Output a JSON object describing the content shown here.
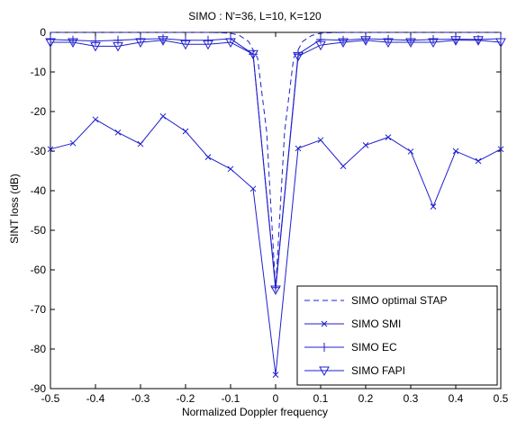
{
  "chart_data": {
    "type": "line",
    "title": "SIMO : N'=36, L=10, K=120",
    "xlabel": "Normalized Doppler frequency",
    "ylabel": "SINT loss (dB)",
    "xlim": [
      -0.5,
      0.5
    ],
    "ylim": [
      -90,
      0
    ],
    "xticks": [
      -0.5,
      -0.4,
      -0.3,
      -0.2,
      -0.1,
      0,
      0.1,
      0.2,
      0.3,
      0.4,
      0.5
    ],
    "xtick_labels": [
      "-0.5",
      "-0.4",
      "-0.3",
      "-0.2",
      "-0.1",
      "0",
      "0.1",
      "0.2",
      "0.3",
      "0.4",
      "0.5"
    ],
    "yticks": [
      0,
      -10,
      -20,
      -30,
      -40,
      -50,
      -60,
      -70,
      -80,
      -90
    ],
    "ytick_labels": [
      "0",
      "-10",
      "-20",
      "-30",
      "-40",
      "-50",
      "-60",
      "-70",
      "-80",
      "-90"
    ],
    "grid": false,
    "legend_position": "bottom-right",
    "color": "#1f1fcc",
    "series": [
      {
        "name": "SIMO optimal STAP",
        "style": "dashed",
        "marker": "none",
        "x": [
          -0.5,
          -0.15,
          -0.1,
          -0.08,
          -0.06,
          -0.04,
          -0.02,
          0,
          0.02,
          0.04,
          0.06,
          0.08,
          0.1,
          0.15,
          0.5
        ],
        "y": [
          0,
          0,
          -0.2,
          -0.8,
          -2.3,
          -6.5,
          -25,
          -65,
          -25,
          -6.5,
          -2.3,
          -0.8,
          -0.2,
          0,
          0
        ]
      },
      {
        "name": "SIMO SMI",
        "style": "solid",
        "marker": "x",
        "x": [
          -0.5,
          -0.45,
          -0.4,
          -0.35,
          -0.3,
          -0.25,
          -0.2,
          -0.15,
          -0.1,
          -0.05,
          0,
          0.05,
          0.1,
          0.15,
          0.2,
          0.25,
          0.3,
          0.35,
          0.4,
          0.45,
          0.5
        ],
        "y": [
          -29.5,
          -28,
          -22,
          -25.3,
          -28.2,
          -21.2,
          -25,
          -31.5,
          -34.5,
          -39.5,
          -86.5,
          -29.3,
          -27.2,
          -33.8,
          -28.5,
          -26.5,
          -30.1,
          -44,
          -30,
          -32.5,
          -29.5
        ]
      },
      {
        "name": "SIMO EC",
        "style": "solid",
        "marker": "+",
        "x": [
          -0.5,
          -0.45,
          -0.4,
          -0.35,
          -0.3,
          -0.25,
          -0.2,
          -0.15,
          -0.1,
          -0.05,
          0,
          0.05,
          0.1,
          0.15,
          0.2,
          0.25,
          0.3,
          0.35,
          0.4,
          0.45,
          0.5
        ],
        "y": [
          -1.8,
          -2,
          -2.2,
          -2,
          -1.7,
          -1.6,
          -2,
          -2,
          -1.6,
          -5.5,
          -64.5,
          -5.5,
          -1.8,
          -2,
          -1.6,
          -1.8,
          -2,
          -1.8,
          -1.7,
          -1.8,
          -1.6
        ]
      },
      {
        "name": "SIMO FAPI",
        "style": "solid",
        "marker": "triangle-down",
        "x": [
          -0.5,
          -0.45,
          -0.4,
          -0.35,
          -0.3,
          -0.25,
          -0.2,
          -0.15,
          -0.1,
          -0.05,
          0,
          0.05,
          0.1,
          0.15,
          0.2,
          0.25,
          0.3,
          0.35,
          0.4,
          0.45,
          0.5
        ],
        "y": [
          -2.5,
          -2.5,
          -3.5,
          -3.5,
          -2.5,
          -2,
          -3,
          -3,
          -2.5,
          -5.5,
          -65,
          -6,
          -3.2,
          -2.5,
          -2,
          -2.5,
          -2.5,
          -2.5,
          -2,
          -2,
          -2.5
        ]
      }
    ]
  }
}
